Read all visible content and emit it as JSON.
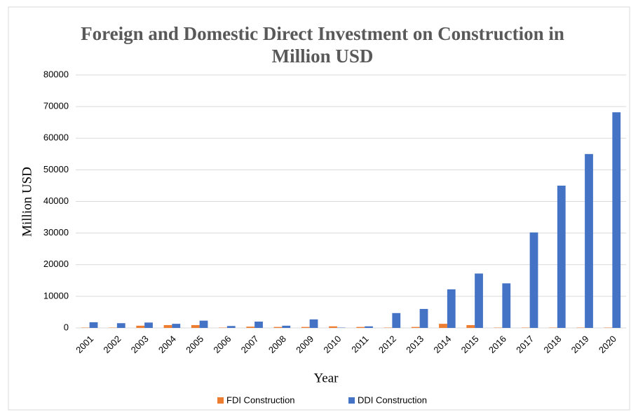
{
  "chart_data": {
    "type": "bar",
    "title": "Foreign and Domestic Direct Investment on Construction in Million USD",
    "x_label": "Year",
    "y_label": "Million USD",
    "categories": [
      "2001",
      "2002",
      "2003",
      "2004",
      "2005",
      "2006",
      "2007",
      "2008",
      "2009",
      "2010",
      "2011",
      "2012",
      "2013",
      "2014",
      "2015",
      "2016",
      "2017",
      "2018",
      "2019",
      "2020"
    ],
    "series": [
      {
        "name": "FDI Construction",
        "color": "#ed7d31",
        "values": [
          100,
          100,
          700,
          900,
          900,
          100,
          400,
          300,
          300,
          500,
          300,
          100,
          300,
          1300,
          900,
          100,
          100,
          100,
          100,
          100
        ]
      },
      {
        "name": "DDI Construction",
        "color": "#4472c4",
        "values": [
          1800,
          1500,
          1700,
          1300,
          2300,
          600,
          2000,
          700,
          2700,
          100,
          500,
          4700,
          6000,
          12200,
          17200,
          14100,
          30200,
          45000,
          55000,
          68200
        ]
      }
    ],
    "ylim": [
      0,
      80000
    ],
    "yticks": [
      0,
      10000,
      20000,
      30000,
      40000,
      50000,
      60000,
      70000,
      80000
    ],
    "grid": true,
    "legend": "bottom"
  }
}
